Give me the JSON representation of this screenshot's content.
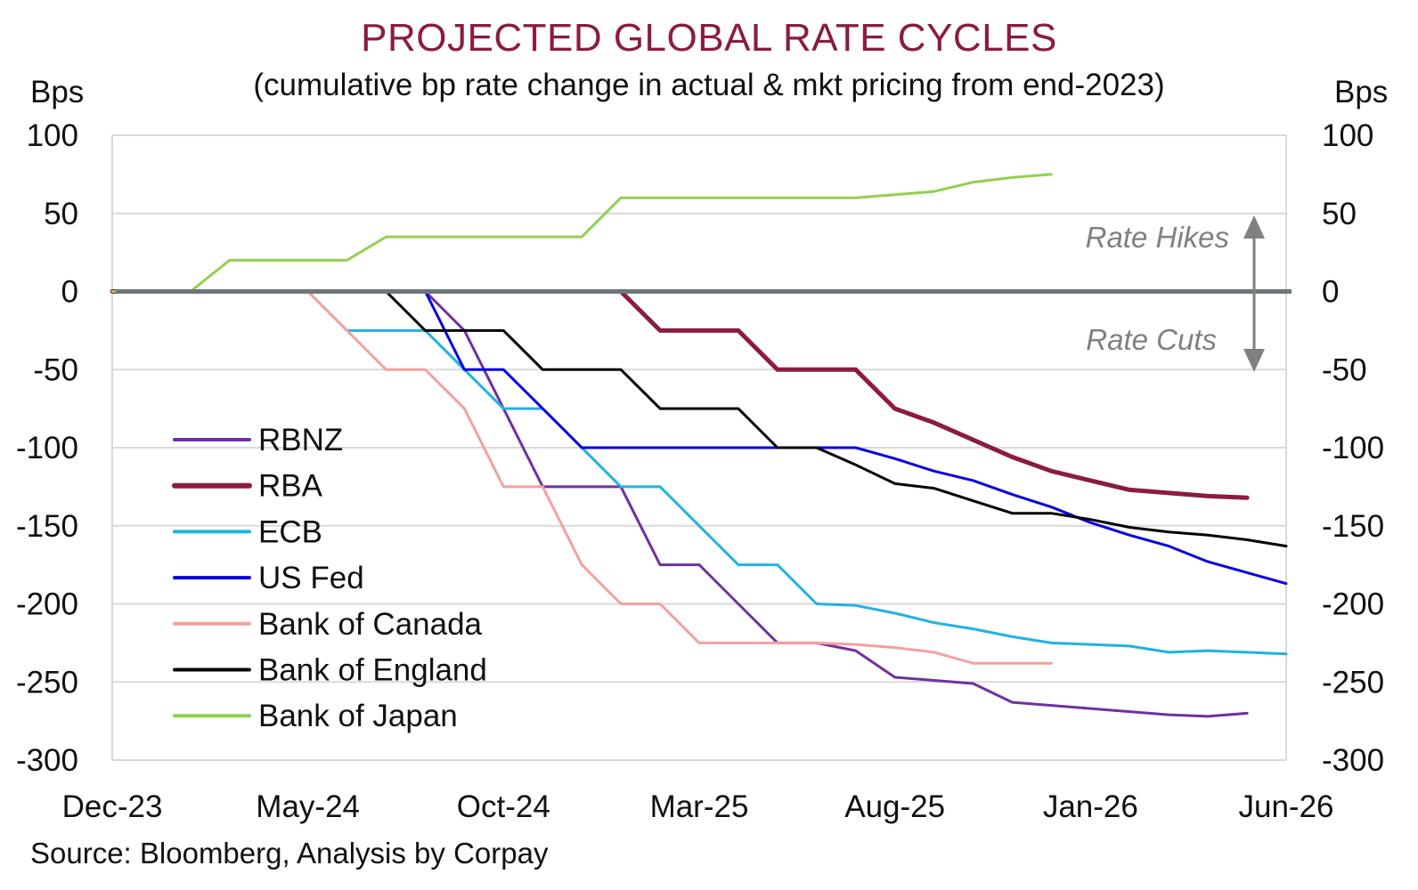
{
  "title": "PROJECTED GLOBAL RATE CYCLES",
  "subtitle": "(cumulative bp rate change in actual & mkt pricing from end-2023)",
  "left_unit": "Bps",
  "right_unit": "Bps",
  "source": "Source: Bloomberg, Analysis by Corpay",
  "colors": {
    "title": "#8b1c3f",
    "grid": "#d9d9d9",
    "zero_line": "#6e7678",
    "annotation": "#808080"
  },
  "annotations": {
    "hikes": "Rate Hikes",
    "cuts": "Rate Cuts"
  },
  "chart_data": {
    "type": "line",
    "x_ticks": [
      "Dec-23",
      "May-24",
      "Oct-24",
      "Mar-25",
      "Aug-25",
      "Jan-26",
      "Jun-26"
    ],
    "x_range": [
      "2023-12",
      "2026-06"
    ],
    "ylim": [
      -300,
      100
    ],
    "y_ticks": [
      100,
      50,
      0,
      -50,
      -100,
      -150,
      -200,
      -250,
      -300
    ],
    "legend_position": "left",
    "grid": true,
    "series": [
      {
        "name": "RBNZ",
        "color": "#7030a0",
        "x": [
          "2023-12",
          "2024-01",
          "2024-02",
          "2024-03",
          "2024-04",
          "2024-05",
          "2024-06",
          "2024-07",
          "2024-08",
          "2024-09",
          "2024-10",
          "2024-11",
          "2024-12",
          "2025-01",
          "2025-02",
          "2025-03",
          "2025-04",
          "2025-05",
          "2025-06",
          "2025-07",
          "2025-08",
          "2025-09",
          "2025-10",
          "2025-11",
          "2025-12",
          "2026-01",
          "2026-02",
          "2026-03",
          "2026-04",
          "2026-05"
        ],
        "y": [
          0,
          0,
          0,
          0,
          0,
          0,
          0,
          0,
          0,
          -25,
          -75,
          -125,
          -125,
          -125,
          -175,
          -175,
          -200,
          -225,
          -225,
          -230,
          -247,
          -249,
          -251,
          -263,
          -265,
          -267,
          -269,
          -271,
          -272,
          -270
        ]
      },
      {
        "name": "RBA",
        "color": "#8b1c3f",
        "x": [
          "2023-12",
          "2024-01",
          "2024-02",
          "2024-03",
          "2024-04",
          "2024-05",
          "2024-06",
          "2024-07",
          "2024-08",
          "2024-09",
          "2024-10",
          "2024-11",
          "2024-12",
          "2025-01",
          "2025-02",
          "2025-03",
          "2025-04",
          "2025-05",
          "2025-06",
          "2025-07",
          "2025-08",
          "2025-09",
          "2025-10",
          "2025-11",
          "2025-12",
          "2026-01",
          "2026-02",
          "2026-03",
          "2026-04",
          "2026-05"
        ],
        "y": [
          0,
          0,
          0,
          0,
          0,
          0,
          0,
          0,
          0,
          0,
          0,
          0,
          0,
          0,
          -25,
          -25,
          -25,
          -50,
          -50,
          -50,
          -75,
          -84,
          -95,
          -106,
          -115,
          -121,
          -127,
          -129,
          -131,
          -132
        ]
      },
      {
        "name": "ECB",
        "color": "#1fb3e3",
        "x": [
          "2023-12",
          "2024-01",
          "2024-02",
          "2024-03",
          "2024-04",
          "2024-05",
          "2024-06",
          "2024-07",
          "2024-08",
          "2024-09",
          "2024-10",
          "2024-11",
          "2024-12",
          "2025-01",
          "2025-02",
          "2025-03",
          "2025-04",
          "2025-05",
          "2025-06",
          "2025-07",
          "2025-08",
          "2025-09",
          "2025-10",
          "2025-11",
          "2025-12",
          "2026-01",
          "2026-02",
          "2026-03",
          "2026-04",
          "2026-05",
          "2026-06"
        ],
        "y": [
          0,
          0,
          0,
          0,
          0,
          0,
          -25,
          -25,
          -25,
          -50,
          -75,
          -75,
          -100,
          -125,
          -125,
          -150,
          -175,
          -175,
          -200,
          -201,
          -206,
          -212,
          -216,
          -221,
          -225,
          -226,
          -227,
          -231,
          -230,
          -231,
          -232
        ]
      },
      {
        "name": "US Fed",
        "color": "#0a00e0",
        "x": [
          "2023-12",
          "2024-01",
          "2024-02",
          "2024-03",
          "2024-04",
          "2024-05",
          "2024-06",
          "2024-07",
          "2024-08",
          "2024-09",
          "2024-10",
          "2024-11",
          "2024-12",
          "2025-01",
          "2025-02",
          "2025-03",
          "2025-04",
          "2025-05",
          "2025-06",
          "2025-07",
          "2025-08",
          "2025-09",
          "2025-10",
          "2025-11",
          "2025-12",
          "2026-01",
          "2026-02",
          "2026-03",
          "2026-04",
          "2026-05",
          "2026-06"
        ],
        "y": [
          0,
          0,
          0,
          0,
          0,
          0,
          0,
          0,
          0,
          -50,
          -50,
          -75,
          -100,
          -100,
          -100,
          -100,
          -100,
          -100,
          -100,
          -100,
          -107,
          -115,
          -121,
          -130,
          -138,
          -148,
          -156,
          -163,
          -173,
          -180,
          -187
        ]
      },
      {
        "name": "Bank of Canada",
        "color": "#f4a0a0",
        "x": [
          "2023-12",
          "2024-01",
          "2024-02",
          "2024-03",
          "2024-04",
          "2024-05",
          "2024-06",
          "2024-07",
          "2024-08",
          "2024-09",
          "2024-10",
          "2024-11",
          "2024-12",
          "2025-01",
          "2025-02",
          "2025-03",
          "2025-04",
          "2025-05",
          "2025-06",
          "2025-07",
          "2025-08",
          "2025-09",
          "2025-10",
          "2025-11",
          "2025-12"
        ],
        "y": [
          0,
          0,
          0,
          0,
          0,
          0,
          -25,
          -50,
          -50,
          -75,
          -125,
          -125,
          -175,
          -200,
          -200,
          -225,
          -225,
          -225,
          -225,
          -226,
          -228,
          -231,
          -238,
          -238,
          -238
        ]
      },
      {
        "name": "Bank of England",
        "color": "#000000",
        "x": [
          "2023-12",
          "2024-01",
          "2024-02",
          "2024-03",
          "2024-04",
          "2024-05",
          "2024-06",
          "2024-07",
          "2024-08",
          "2024-09",
          "2024-10",
          "2024-11",
          "2024-12",
          "2025-01",
          "2025-02",
          "2025-03",
          "2025-04",
          "2025-05",
          "2025-06",
          "2025-07",
          "2025-08",
          "2025-09",
          "2025-10",
          "2025-11",
          "2025-12",
          "2026-01",
          "2026-02",
          "2026-03",
          "2026-04",
          "2026-05",
          "2026-06"
        ],
        "y": [
          0,
          0,
          0,
          0,
          0,
          0,
          0,
          0,
          -25,
          -25,
          -25,
          -50,
          -50,
          -50,
          -75,
          -75,
          -75,
          -100,
          -100,
          -111,
          -123,
          -126,
          -134,
          -142,
          -142,
          -146,
          -151,
          -154,
          -156,
          -159,
          -163
        ]
      },
      {
        "name": "Bank of Japan",
        "color": "#92d050",
        "x": [
          "2023-12",
          "2024-01",
          "2024-02",
          "2024-03",
          "2024-04",
          "2024-05",
          "2024-06",
          "2024-07",
          "2024-08",
          "2024-09",
          "2024-10",
          "2024-11",
          "2024-12",
          "2025-01",
          "2025-02",
          "2025-03",
          "2025-04",
          "2025-05",
          "2025-06",
          "2025-07",
          "2025-08",
          "2025-09",
          "2025-10",
          "2025-11",
          "2025-12"
        ],
        "y": [
          0,
          0,
          0,
          20,
          20,
          20,
          20,
          35,
          35,
          35,
          35,
          35,
          35,
          60,
          60,
          60,
          60,
          60,
          60,
          60,
          62,
          64,
          70,
          73,
          75
        ]
      }
    ]
  }
}
